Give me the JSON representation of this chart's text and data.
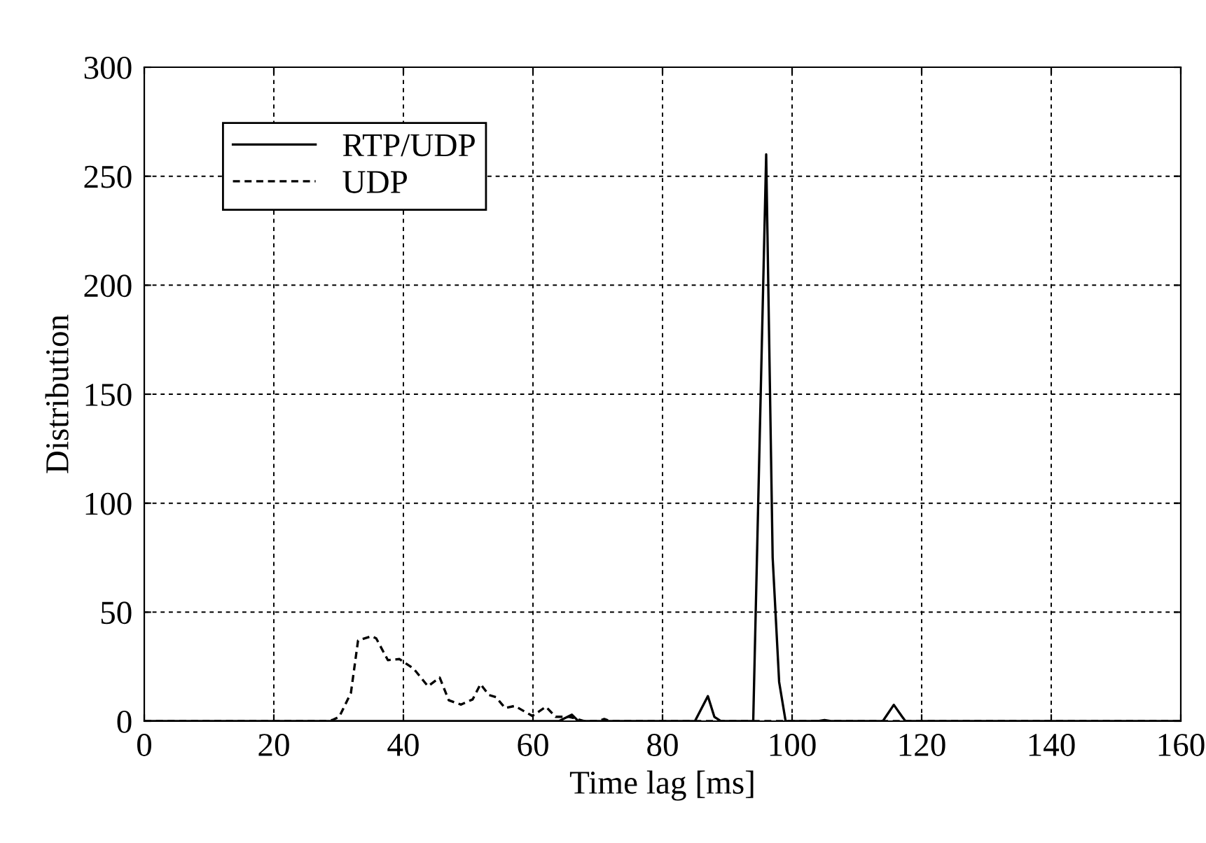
{
  "chart_data": {
    "type": "line",
    "xlabel": "Time lag [ms]",
    "ylabel": "Distribution",
    "xlim": [
      0,
      160
    ],
    "ylim": [
      0,
      300
    ],
    "xticks": [
      0,
      20,
      40,
      60,
      80,
      100,
      120,
      140,
      160
    ],
    "yticks": [
      0,
      50,
      100,
      150,
      200,
      250,
      300
    ],
    "grid": true,
    "legend": "top left",
    "series": [
      {
        "name": "RTP/UDP",
        "color": "#000000",
        "line_style": "solid",
        "x": [
          0,
          64,
          66,
          67,
          85,
          87,
          88,
          89,
          94,
          96,
          97,
          98,
          99,
          104,
          105,
          106,
          114,
          115.7,
          117,
          117.5,
          160
        ],
        "values": [
          0,
          0,
          3,
          0,
          0,
          11.5,
          2,
          0,
          0,
          260,
          75,
          18,
          0,
          0,
          0.5,
          0,
          0,
          7.5,
          2,
          0,
          0
        ]
      },
      {
        "name": "UDP",
        "color": "#000000",
        "line_style": "dashed",
        "x": [
          0,
          28,
          29,
          30.1,
          31.9,
          33,
          35.1,
          35.8,
          37.6,
          39.4,
          41.6,
          43.8,
          45.6,
          47,
          48.9,
          50.7,
          51.9,
          53.2,
          54.3,
          55.7,
          57.2,
          59.9,
          62,
          63.5,
          65.6,
          68,
          70,
          71,
          72,
          73,
          160
        ],
        "values": [
          0,
          0,
          0.5,
          2,
          13,
          37,
          39,
          38,
          28,
          28.5,
          24,
          16,
          20,
          9.6,
          7.6,
          10,
          17,
          12,
          11,
          6,
          7,
          2.4,
          6.6,
          2,
          2,
          0,
          0,
          1,
          0,
          0,
          0
        ]
      }
    ]
  }
}
